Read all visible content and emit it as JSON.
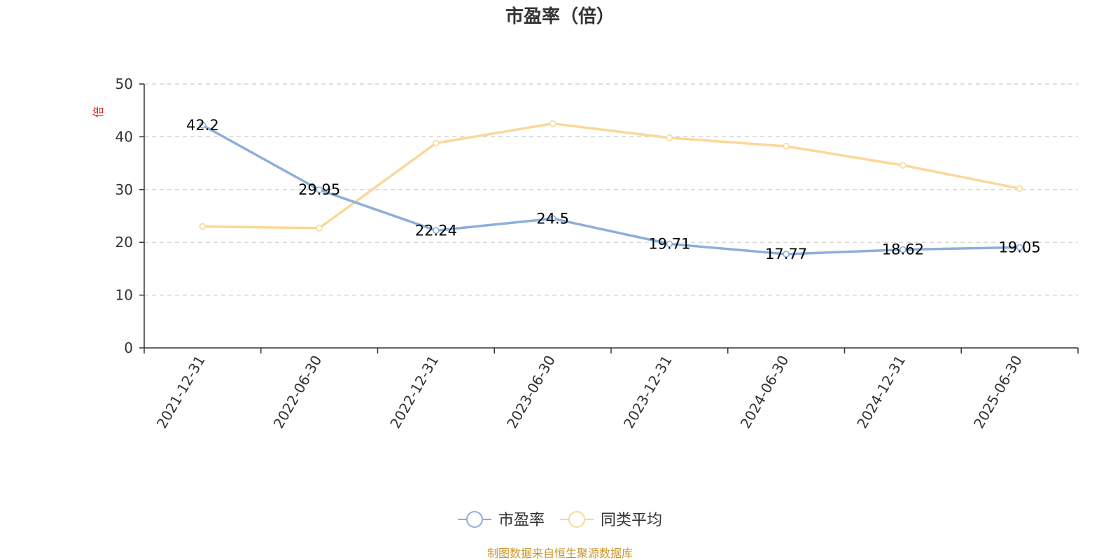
{
  "chart_data": {
    "type": "line",
    "title": "市盈率（倍）",
    "ylabel": "倍",
    "xlabel": "",
    "ylim": [
      0,
      50
    ],
    "yticks": [
      0,
      10,
      20,
      30,
      40,
      50
    ],
    "categories": [
      "2021-12-31",
      "2022-06-30",
      "2022-12-31",
      "2023-06-30",
      "2023-12-31",
      "2024-06-30",
      "2024-12-31",
      "2025-06-30"
    ],
    "series": [
      {
        "name": "市盈率",
        "color": "#8eaedb",
        "values": [
          42.2,
          29.95,
          22.24,
          24.5,
          19.71,
          17.77,
          18.62,
          19.05
        ],
        "labels": [
          "42.2",
          "29.95",
          "22.24",
          "24.5",
          "19.71",
          "17.77",
          "18.62",
          "19.05"
        ]
      },
      {
        "name": "同类平均",
        "color": "#fbd898",
        "values": [
          23.0,
          22.7,
          38.8,
          42.5,
          39.8,
          38.2,
          34.6,
          30.2
        ]
      }
    ],
    "grid": true,
    "legend_position": "bottom-center",
    "unit_color": "#e02020"
  },
  "source": {
    "text": "制图数据来自恒生聚源数据库",
    "color": "#c8962e"
  }
}
